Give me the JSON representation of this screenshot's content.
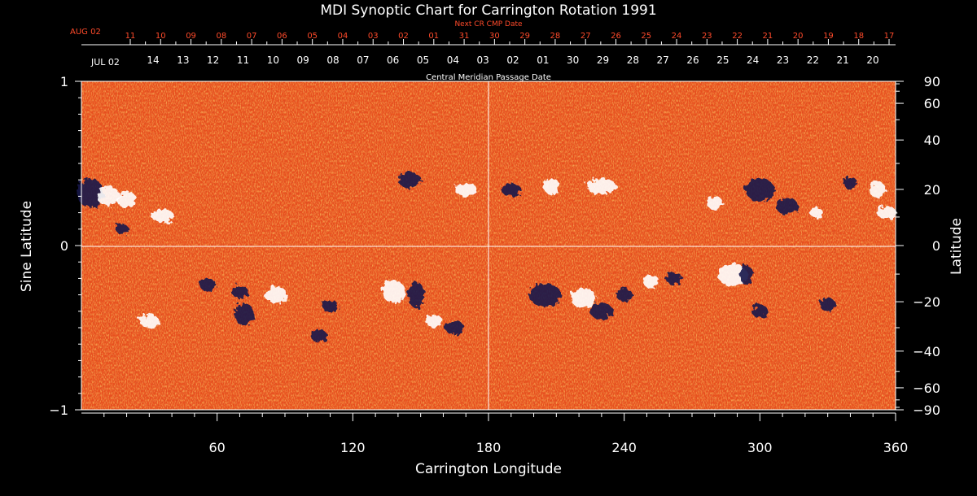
{
  "chart_data": {
    "type": "heatmap",
    "title": "MDI Synoptic Chart for Carrington Rotation 1991",
    "xlabel": "Carrington Longitude",
    "ylabel_left": "Sine Latitude",
    "ylabel_right": "Latitude",
    "xlim": [
      0,
      360
    ],
    "ylim": [
      -1,
      1
    ],
    "x_ticks": [
      60,
      120,
      180,
      240,
      300,
      360
    ],
    "y_left_ticks": [
      1,
      0,
      -1
    ],
    "y_left_tick_labels": [
      "1",
      "0",
      "−1"
    ],
    "y_right_ticks_deg": [
      90,
      60,
      40,
      20,
      0,
      -20,
      -40,
      -60,
      -90
    ],
    "y_right_tick_labels": [
      "90",
      "60",
      "40",
      "20",
      "0",
      "−20",
      "−40",
      "−60",
      "−90"
    ],
    "reference_lines": {
      "longitude": 180,
      "sine_latitude": 0
    },
    "top_axis_title": "Next CR CMP Date",
    "top_axis_start_label": "AUG 02",
    "top_axis_dates": [
      "11",
      "10",
      "09",
      "08",
      "07",
      "06",
      "05",
      "04",
      "03",
      "02",
      "01",
      "31",
      "30",
      "29",
      "28",
      "27",
      "26",
      "25",
      "24",
      "23",
      "22",
      "21",
      "20",
      "19",
      "18",
      "17"
    ],
    "cmp_axis_title": "Central Meridian Passage Date",
    "cmp_axis_start_label": "JUL 02",
    "cmp_axis_dates": [
      "14",
      "13",
      "12",
      "11",
      "10",
      "09",
      "08",
      "07",
      "06",
      "05",
      "04",
      "03",
      "02",
      "01",
      "30",
      "29",
      "28",
      "27",
      "26",
      "25",
      "24",
      "23",
      "22",
      "21",
      "20"
    ],
    "colormap": {
      "background": "#e8501e",
      "positive": "#ffffff",
      "negative": "#14144a"
    }
  }
}
